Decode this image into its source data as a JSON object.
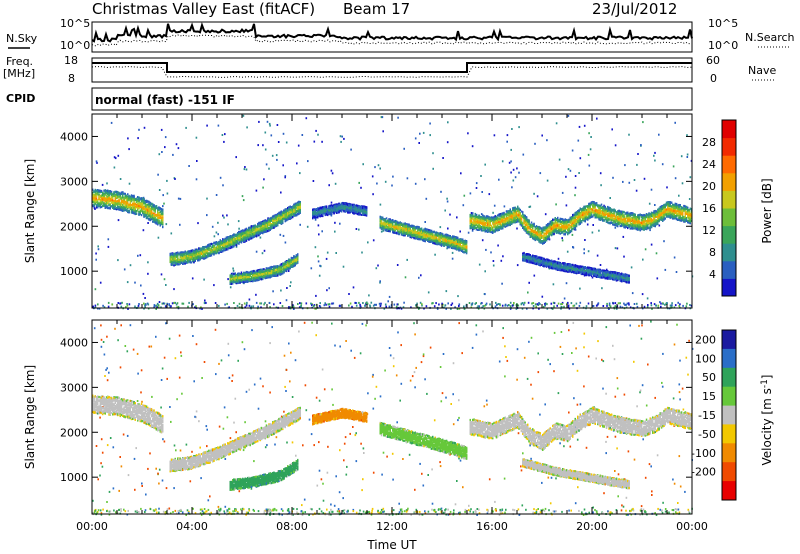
{
  "header": {
    "title": "Christmas Valley East (fitACF)",
    "beam": "Beam 17",
    "date": "23/Jul/2012"
  },
  "summary_panel": {
    "nsky_label": "N.Sky",
    "nsearch_label": "N.Search",
    "noise_ticks": [
      "10^5",
      "10^0"
    ],
    "freq_label": "Freq.",
    "freq_unit": "[MHz]",
    "freq_ticks": [
      "18",
      "8"
    ],
    "nave_label": "Nave",
    "nave_ticks": [
      "60",
      "0"
    ],
    "cpid_label": "CPID",
    "cpid_text": "normal (fast) -151 IF"
  },
  "chart_data": [
    {
      "type": "heatmap",
      "title": "",
      "ylabel": "Slant Range [km]",
      "xlabel": "",
      "xlim": [
        0,
        24
      ],
      "ylim": [
        180,
        4500
      ],
      "yticks": [
        1000,
        2000,
        3000,
        4000
      ],
      "colorbar": {
        "label": "Power [dB]",
        "ticks": [
          4,
          8,
          12,
          16,
          20,
          24,
          28
        ],
        "range": [
          0,
          32
        ],
        "colors": [
          "#1515c8",
          "#2a5fc0",
          "#2f8f8f",
          "#3aa55a",
          "#6dbe3a",
          "#c8c81e",
          "#f2a000",
          "#ff6a00",
          "#f22a00",
          "#e00000"
        ]
      },
      "bands": [
        {
          "t": [
            0.0,
            1.0,
            2.0,
            2.8
          ],
          "r": [
            2650,
            2600,
            2450,
            2200
          ],
          "half_width_km": 160,
          "db": 22
        },
        {
          "t": [
            3.1,
            4.0,
            5.0,
            6.0,
            7.0,
            8.3
          ],
          "r": [
            1280,
            1350,
            1550,
            1800,
            2050,
            2450
          ],
          "half_width_km": 110,
          "db": 18
        },
        {
          "t": [
            5.5,
            6.5,
            7.5,
            8.2
          ],
          "r": [
            850,
            920,
            1050,
            1300
          ],
          "half_width_km": 90,
          "db": 18
        },
        {
          "t": [
            8.8,
            10.0,
            11.0
          ],
          "r": [
            2300,
            2450,
            2350
          ],
          "half_width_km": 80,
          "db": 9
        },
        {
          "t": [
            11.5,
            12.5,
            13.5,
            14.5,
            15.0
          ],
          "r": [
            2100,
            1950,
            1800,
            1650,
            1550
          ],
          "half_width_km": 110,
          "db": 20
        },
        {
          "t": [
            15.1,
            16.0,
            17.0,
            17.5,
            18.0,
            18.5,
            19.0,
            19.5,
            20.0,
            21.0,
            22.0,
            22.5,
            23.0,
            24.0
          ],
          "r": [
            2150,
            2050,
            2300,
            1950,
            1800,
            2050,
            2000,
            2250,
            2400,
            2200,
            2100,
            2200,
            2400,
            2250
          ],
          "half_width_km": 140,
          "db": 22
        },
        {
          "t": [
            17.2,
            18.5,
            20.0,
            21.5
          ],
          "r": [
            1350,
            1150,
            1000,
            850
          ],
          "half_width_km": 70,
          "db": 9
        }
      ]
    },
    {
      "type": "heatmap",
      "title": "",
      "ylabel": "Slant Range [km]",
      "xlabel": "Time UT",
      "xlim": [
        0,
        24
      ],
      "ylim": [
        180,
        4500
      ],
      "yticks": [
        1000,
        2000,
        3000,
        4000
      ],
      "xticks": [
        "00:00",
        "04:00",
        "08:00",
        "12:00",
        "16:00",
        "20:00",
        "00:00"
      ],
      "colorbar": {
        "label": "Velocity [m s^-1]",
        "ticks": [
          200,
          100,
          50,
          15,
          -15,
          -50,
          -100,
          -200
        ],
        "range": [
          -250,
          250
        ],
        "colors": [
          "#1a1aa0",
          "#2a6ec8",
          "#2fa35a",
          "#66c83a",
          "#c0c0c0",
          "#f2c800",
          "#f08a00",
          "#f04a00",
          "#e80000"
        ]
      },
      "bands": [
        {
          "t": [
            0.0,
            1.0,
            2.0,
            2.8
          ],
          "r": [
            2650,
            2600,
            2450,
            2200
          ],
          "half_width_km": 160,
          "vel": 0
        },
        {
          "t": [
            3.1,
            4.0,
            5.0,
            6.0,
            7.0,
            8.3
          ],
          "r": [
            1280,
            1350,
            1550,
            1800,
            2050,
            2450
          ],
          "half_width_km": 110,
          "vel": 0
        },
        {
          "t": [
            5.5,
            6.5,
            7.5,
            8.2
          ],
          "r": [
            850,
            920,
            1050,
            1300
          ],
          "half_width_km": 90,
          "vel": 60
        },
        {
          "t": [
            8.8,
            10.0,
            11.0
          ],
          "r": [
            2300,
            2450,
            2350
          ],
          "half_width_km": 80,
          "vel": -60
        },
        {
          "t": [
            11.5,
            12.5,
            13.5,
            14.5,
            15.0
          ],
          "r": [
            2100,
            1950,
            1800,
            1650,
            1550
          ],
          "half_width_km": 110,
          "vel": 30
        },
        {
          "t": [
            15.1,
            16.0,
            17.0,
            17.5,
            18.0,
            18.5,
            19.0,
            19.5,
            20.0,
            21.0,
            22.0,
            22.5,
            23.0,
            24.0
          ],
          "r": [
            2150,
            2050,
            2300,
            1950,
            1800,
            2050,
            2000,
            2250,
            2400,
            2200,
            2100,
            2200,
            2400,
            2250
          ],
          "half_width_km": 140,
          "vel": 0
        },
        {
          "t": [
            17.2,
            18.5,
            20.0,
            21.5
          ],
          "r": [
            1350,
            1150,
            1000,
            850
          ],
          "half_width_km": 70,
          "vel": 0
        }
      ]
    }
  ]
}
